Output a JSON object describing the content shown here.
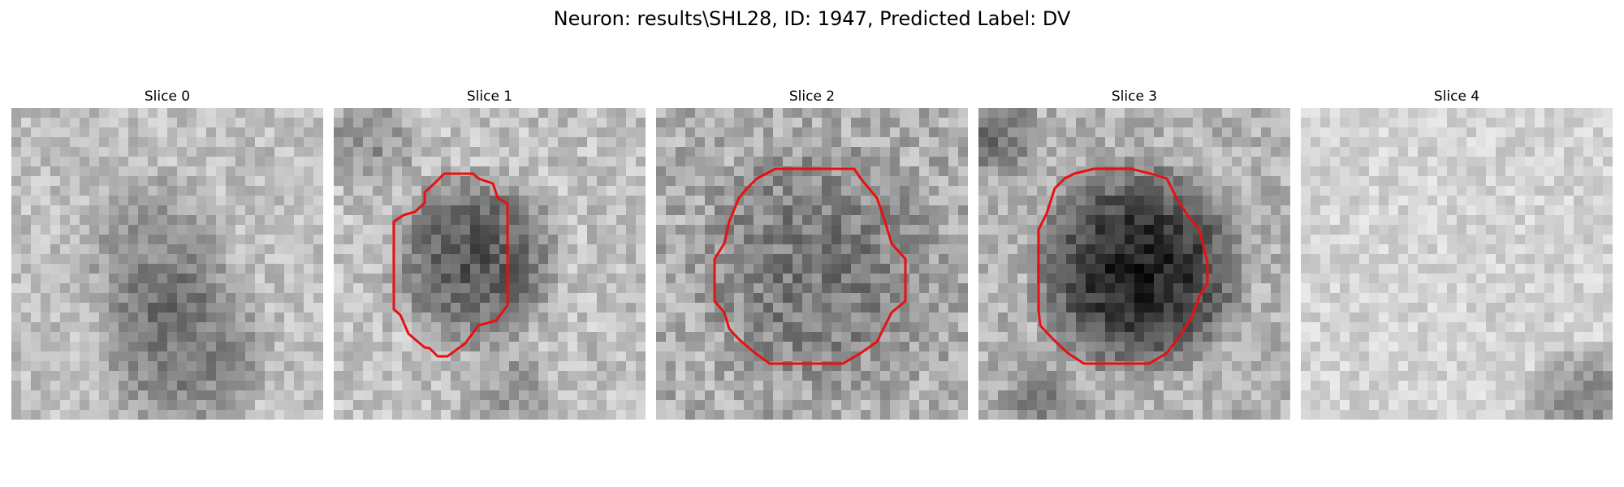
{
  "figure": {
    "title": "Neuron: results\\SHL28, ID: 1947, Predicted Label: DV"
  },
  "colors": {
    "background": "#ffffff",
    "contour": "#e81010",
    "colormap": "gray_r"
  },
  "panels": [
    {
      "title": "Slice 0",
      "has_contour": false
    },
    {
      "title": "Slice 1",
      "has_contour": true
    },
    {
      "title": "Slice 2",
      "has_contour": true
    },
    {
      "title": "Slice 3",
      "has_contour": true
    },
    {
      "title": "Slice 4",
      "has_contour": false
    }
  ]
}
